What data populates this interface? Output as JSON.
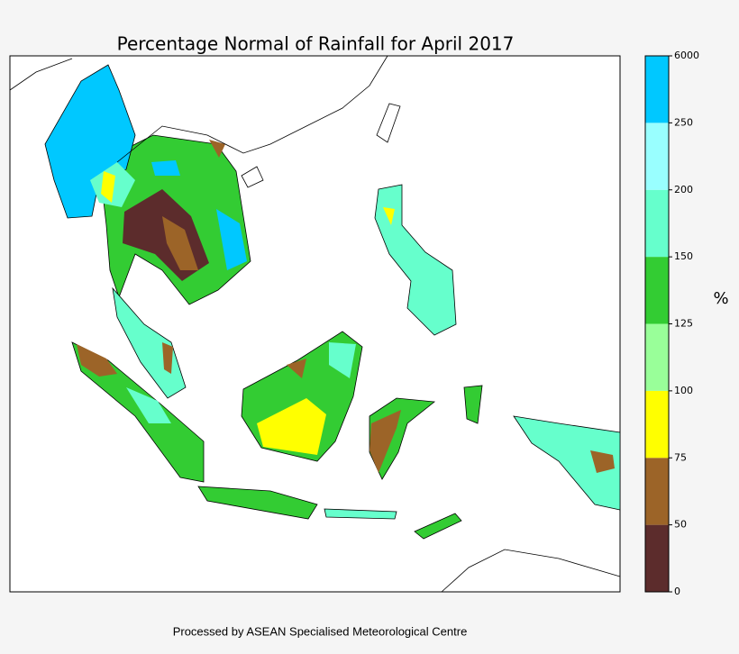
{
  "title": "Percentage Normal of Rainfall for April 2017",
  "colorbar": {
    "label": "%",
    "ticks": [
      0,
      50,
      75,
      100,
      125,
      150,
      200,
      250,
      6000
    ],
    "colors": [
      "#5c2c2c",
      "#9c6428",
      "#ffff00",
      "#99ff99",
      "#33cc33",
      "#66ffcc",
      "#99ffff",
      "#00c8ff"
    ]
  },
  "footer": "Processed by ASEAN Specialised Meteorological Centre"
}
